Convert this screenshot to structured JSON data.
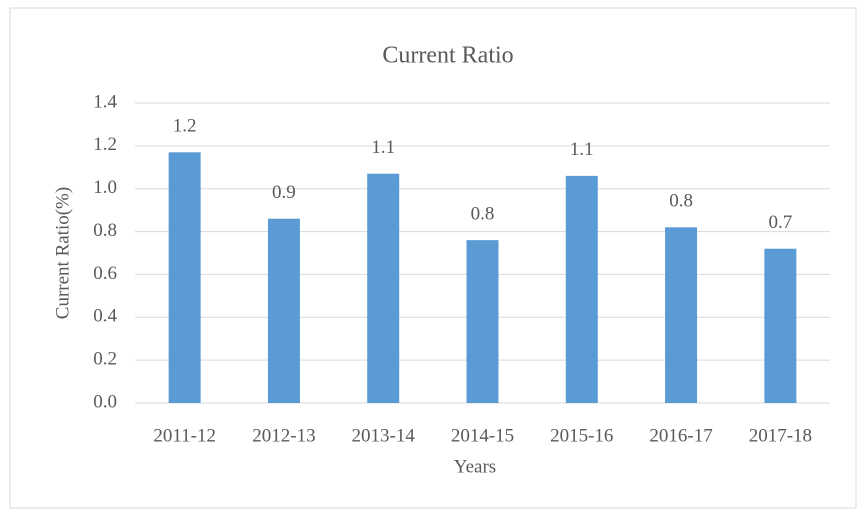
{
  "chart_data": {
    "type": "bar",
    "title": "Current  Ratio",
    "x_label": "Years",
    "y_label": "Current Ratio(%)",
    "categories": [
      "2011-12",
      "2012-13",
      "2013-14",
      "2014-15",
      "2015-16",
      "2016-17",
      "2017-18"
    ],
    "values": [
      1.17,
      0.86,
      1.07,
      0.76,
      1.06,
      0.82,
      0.72
    ],
    "value_labels": [
      "1.2",
      "0.9",
      "1.1",
      "0.8",
      "1.1",
      "0.8",
      "0.7"
    ],
    "color": "#5b9bd5",
    "ylim": [
      0,
      1.4
    ],
    "yticks": [
      {
        "value": 0,
        "label": "0.0"
      },
      0.2,
      0.4,
      0.6,
      0.8,
      {
        "value": 1,
        "label": "1.0"
      },
      1.2,
      1.4
    ],
    "grid": true
  }
}
